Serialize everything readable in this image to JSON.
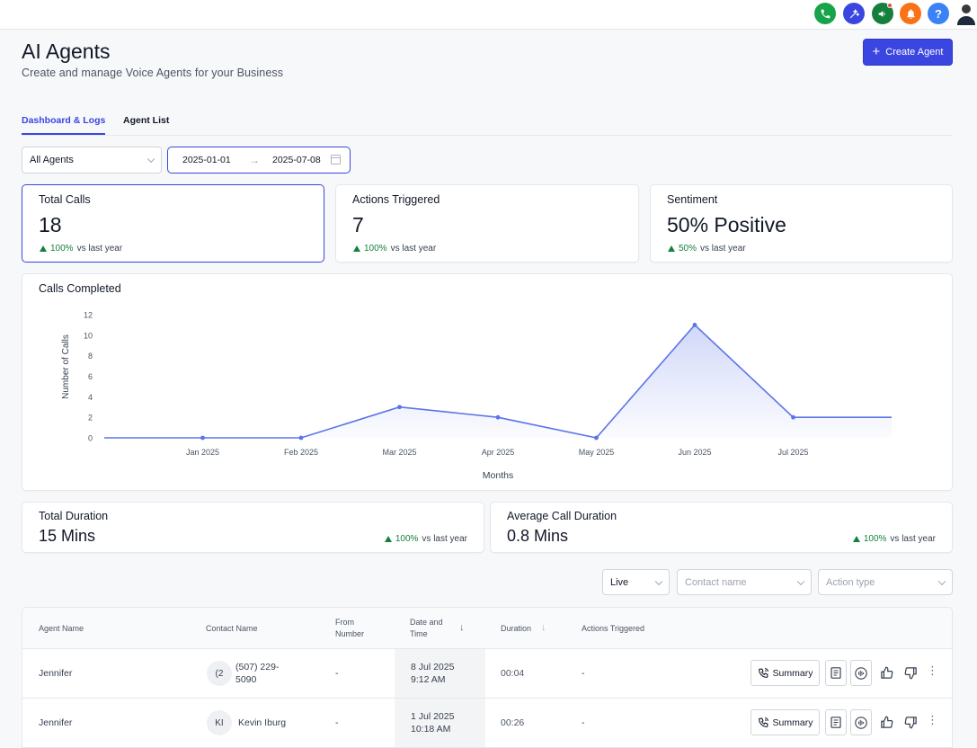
{
  "topbar": {
    "icons": [
      {
        "name": "phone-icon",
        "color": "#16a34a"
      },
      {
        "name": "magic-wand-icon",
        "color": "#3b46e0"
      },
      {
        "name": "megaphone-icon",
        "color": "#15803d"
      },
      {
        "name": "bell-icon",
        "color": "#f97316"
      },
      {
        "name": "help-icon",
        "color": "#3b82f6",
        "glyph": "?"
      }
    ]
  },
  "header": {
    "title": "AI Agents",
    "subtitle": "Create and manage Voice Agents for your Business",
    "create_button": "Create Agent"
  },
  "tabs": [
    {
      "label": "Dashboard & Logs",
      "active": true
    },
    {
      "label": "Agent List",
      "active": false
    }
  ],
  "filters": {
    "agent_select": "All Agents",
    "date_start": "2025-01-01",
    "date_end": "2025-07-08"
  },
  "stats": [
    {
      "label": "Total Calls",
      "value": "18",
      "change": "100%",
      "suffix": "vs last year"
    },
    {
      "label": "Actions Triggered",
      "value": "7",
      "change": "100%",
      "suffix": "vs last year"
    },
    {
      "label": "Sentiment",
      "value": "50% Positive",
      "change": "50%",
      "suffix": "vs last year"
    }
  ],
  "duration_stats": [
    {
      "label": "Total Duration",
      "value": "15 Mins",
      "change": "100%",
      "suffix": "vs last year"
    },
    {
      "label": "Average Call Duration",
      "value": "0.8 Mins",
      "change": "100%",
      "suffix": "vs last year"
    }
  ],
  "chart_data": {
    "type": "area",
    "title": "Calls Completed",
    "xlabel": "Months",
    "ylabel": "Number of Calls",
    "categories": [
      "",
      "Jan 2025",
      "Feb 2025",
      "Mar 2025",
      "Apr 2025",
      "May 2025",
      "Jun 2025",
      "Jul 2025",
      ""
    ],
    "values": [
      0,
      0,
      0,
      3,
      2,
      0,
      11,
      2,
      2
    ],
    "yticks": [
      "0",
      "2",
      "4",
      "6",
      "8",
      "10",
      "12"
    ],
    "ylim": [
      0,
      12
    ],
    "color": "#5b74e8",
    "grid": false
  },
  "log_filters": {
    "mode": "Live",
    "contact_placeholder": "Contact name",
    "action_placeholder": "Action type"
  },
  "table": {
    "headers": {
      "agent": "Agent Name",
      "contact": "Contact Name",
      "from_1": "From",
      "from_2": "Number",
      "date_1": "Date and",
      "date_2": "Time",
      "duration": "Duration",
      "actions": "Actions Triggered"
    },
    "summary_label": "Summary",
    "rows": [
      {
        "agent": "Jennifer",
        "initials": "(2",
        "contact_1": "(507) 229-",
        "contact_2": "5090",
        "from": "-",
        "date": "8 Jul 2025",
        "time": "9:12 AM",
        "duration": "00:04",
        "actions": "-"
      },
      {
        "agent": "Jennifer",
        "initials": "KI",
        "contact_1": "Kevin Iburg",
        "contact_2": "",
        "from": "-",
        "date": "1 Jul 2025",
        "time": "10:18 AM",
        "duration": "00:26",
        "actions": "-"
      }
    ]
  }
}
